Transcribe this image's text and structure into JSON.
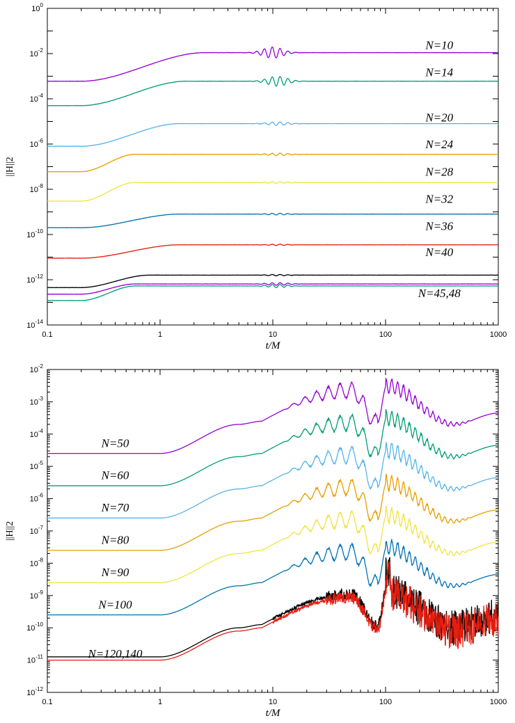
{
  "chart_data": [
    {
      "type": "line",
      "panel": "top",
      "xscale": "log",
      "yscale": "log",
      "xlim": [
        0.1,
        1000
      ],
      "ylim": [
        1e-14,
        1
      ],
      "xlabel": "t/M",
      "ylabel": "||H||2",
      "x_ticks": [
        "0.1",
        "1",
        "10",
        "100",
        "1000"
      ],
      "y_tick_exponents": [
        "0",
        "-2",
        "-4",
        "-6",
        "-8",
        "-10",
        "-12",
        "-14"
      ],
      "series": [
        {
          "name": "N=10",
          "color": "#9400d3",
          "start": 0.0006,
          "break": 0.2,
          "rise_end": 2.5,
          "plateau": 0.011,
          "wiggle_t": 10,
          "wiggle_amp": 0.25
        },
        {
          "name": "N=14",
          "color": "#009e73",
          "start": 5e-05,
          "break": 0.2,
          "rise_end": 1.7,
          "plateau": 0.0006,
          "wiggle_t": 11,
          "wiggle_amp": 0.22
        },
        {
          "name": "N=20",
          "color": "#56b4e9",
          "start": 8e-07,
          "break": 0.2,
          "rise_end": 1.5,
          "plateau": 8e-06,
          "wiggle_t": 11,
          "wiggle_amp": 0.08
        },
        {
          "name": "N=24",
          "color": "#e69f00",
          "start": 6e-08,
          "break": 0.2,
          "rise_end": 0.6,
          "plateau": 3.5e-07,
          "wiggle_t": 11,
          "wiggle_amp": 0.06
        },
        {
          "name": "N=28",
          "color": "#f0e442",
          "start": 3e-09,
          "break": 0.2,
          "rise_end": 0.6,
          "plateau": 2e-08,
          "wiggle_t": 11,
          "wiggle_amp": 0.04
        },
        {
          "name": "N=32",
          "color": "#0072b2",
          "start": 2e-10,
          "break": 0.2,
          "rise_end": 1.5,
          "plateau": 8e-10,
          "wiggle_t": 11,
          "wiggle_amp": 0.04
        },
        {
          "name": "N=36",
          "color": "#e51e10",
          "start": 9e-12,
          "break": 0.2,
          "rise_end": 1.5,
          "plateau": 3.5e-11,
          "wiggle_t": 11,
          "wiggle_amp": 0.03
        },
        {
          "name": "N=40",
          "color": "#000000",
          "start": 4.5e-13,
          "break": 0.2,
          "rise_end": 0.8,
          "plateau": 1.6e-12,
          "wiggle_t": 11,
          "wiggle_amp": 0.03
        },
        {
          "name": "N=45",
          "color": "#9400d3",
          "start": 2.3e-13,
          "break": 0.2,
          "rise_end": 0.6,
          "plateau": 6.5e-13,
          "wiggle_t": 11,
          "wiggle_amp": 0.06
        },
        {
          "name": "N=48",
          "color": "#009e73",
          "start": 1.2e-13,
          "break": 0.2,
          "rise_end": 0.6,
          "plateau": 5.3e-13,
          "wiggle_t": 11,
          "wiggle_amp": 0.07
        }
      ],
      "labels": [
        {
          "text": "N=10",
          "x": 300,
          "y": 0.016
        },
        {
          "text": "N=14",
          "x": 300,
          "y": 0.001
        },
        {
          "text": "N=20",
          "x": 300,
          "y": 1e-05
        },
        {
          "text": "N=24",
          "x": 300,
          "y": 6.5e-07
        },
        {
          "text": "N=28",
          "x": 300,
          "y": 4e-08
        },
        {
          "text": "N=32",
          "x": 300,
          "y": 2.5e-09
        },
        {
          "text": "N=36",
          "x": 300,
          "y": 1.6e-10
        },
        {
          "text": "N=40",
          "x": 300,
          "y": 1.1e-11
        },
        {
          "text": "N=45,48",
          "x": 300,
          "y": 1.7e-13
        }
      ]
    },
    {
      "type": "line",
      "panel": "bottom",
      "xscale": "log",
      "yscale": "log",
      "xlim": [
        0.1,
        1000
      ],
      "ylim": [
        1e-12,
        0.01
      ],
      "xlabel": "t/M",
      "ylabel": "||H||2",
      "x_ticks": [
        "0.1",
        "1",
        "10",
        "100",
        "1000"
      ],
      "y_tick_exponents": [
        "-2",
        "-3",
        "-4",
        "-5",
        "-6",
        "-7",
        "-8",
        "-9",
        "-10",
        "-11",
        "-12"
      ],
      "series": [
        {
          "name": "N=50",
          "color": "#9400d3",
          "offset": 0.0,
          "noisy": false
        },
        {
          "name": "N=60",
          "color": "#009e73",
          "offset": -1.0,
          "noisy": false
        },
        {
          "name": "N=70",
          "color": "#56b4e9",
          "offset": -2.0,
          "noisy": false
        },
        {
          "name": "N=80",
          "color": "#e69f00",
          "offset": -3.0,
          "noisy": false
        },
        {
          "name": "N=90",
          "color": "#f0e442",
          "offset": -4.0,
          "noisy": false
        },
        {
          "name": "N=100",
          "color": "#0072b2",
          "offset": -5.0,
          "noisy": false
        },
        {
          "name": "N=120",
          "color": "#000000",
          "offset": -6.3,
          "noisy": true
        },
        {
          "name": "N=140",
          "color": "#e51e10",
          "offset": -6.4,
          "noisy": true
        }
      ],
      "labels": [
        {
          "text": "N=50",
          "x": 0.4,
          "y": 4e-05
        },
        {
          "text": "N=60",
          "x": 0.4,
          "y": 4e-06
        },
        {
          "text": "N=70",
          "x": 0.4,
          "y": 4e-07
        },
        {
          "text": "N=80",
          "x": 0.4,
          "y": 4e-08
        },
        {
          "text": "N=90",
          "x": 0.4,
          "y": 4e-09
        },
        {
          "text": "N=100",
          "x": 0.4,
          "y": 4e-10
        },
        {
          "text": "N=120,140",
          "x": 0.4,
          "y": 1.2e-11
        }
      ]
    }
  ]
}
